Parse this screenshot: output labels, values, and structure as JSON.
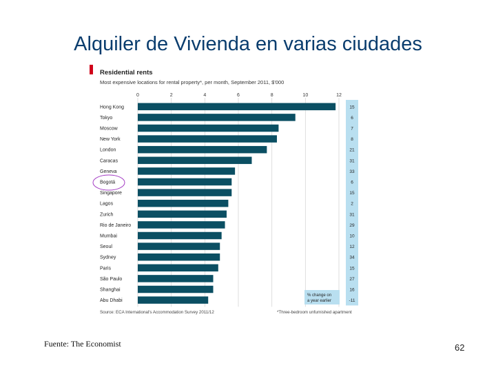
{
  "slide": {
    "title": "Alquiler de Vivienda en varias ciudades",
    "fuente": "Fuente: The Economist",
    "page_number": "62"
  },
  "chart_data": {
    "type": "bar",
    "orientation": "horizontal",
    "title": "Residential rents",
    "subtitle": "Most expensive locations for rental property*, per month, September 2011, $'000",
    "xlim": [
      0,
      12
    ],
    "xticks": [
      0,
      2,
      4,
      6,
      8,
      10,
      12
    ],
    "categories": [
      "Hong Kong",
      "Tokyo",
      "Moscow",
      "New York",
      "London",
      "Caracas",
      "Geneva",
      "Bogotá",
      "Singapore",
      "Lagos",
      "Zurich",
      "Rio de Janeiro",
      "Mumbai",
      "Seoul",
      "Sydney",
      "Paris",
      "São Paulo",
      "Shanghai",
      "Abu Dhabi"
    ],
    "values": [
      11.8,
      9.4,
      8.4,
      8.3,
      7.7,
      6.8,
      5.8,
      5.6,
      5.6,
      5.4,
      5.3,
      5.2,
      5.0,
      4.9,
      4.9,
      4.8,
      4.5,
      4.5,
      4.2
    ],
    "pct_change": [
      "15",
      "6",
      "7",
      "8",
      "21",
      "31",
      "33",
      "6",
      "15",
      "2",
      "31",
      "29",
      "10",
      "12",
      "34",
      "15",
      "27",
      "16",
      "-11"
    ],
    "pct_change_label": "% change on a year earlier",
    "highlighted_category": "Bogotá",
    "grid": true,
    "bar_color": "#0b4f63",
    "box_color": "#b9dff0",
    "highlight_color": "#a33cc4",
    "source": "Source: ECA International's Accommodation Survey 2011/12",
    "footnote": "*Three-bedroom unfurnished apartment"
  }
}
